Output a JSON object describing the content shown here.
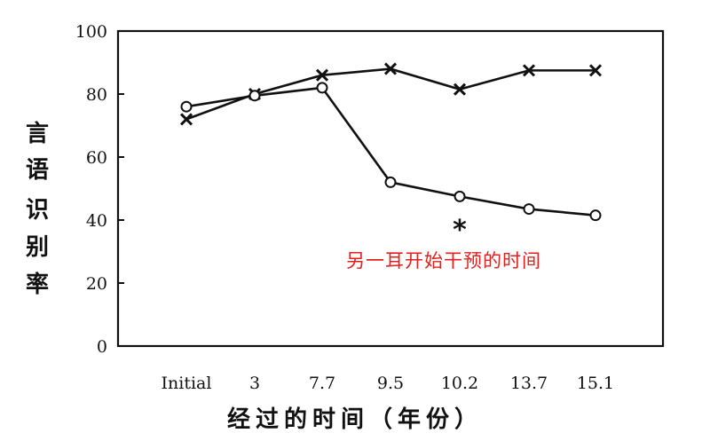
{
  "chart_data": {
    "type": "line",
    "categories": [
      "Initial",
      "3",
      "7.7",
      "9.5",
      "10.2",
      "13.7",
      "15.1"
    ],
    "series": [
      {
        "marker": "x",
        "values": [
          72,
          80,
          86,
          88,
          81.5,
          87.5,
          87.5
        ]
      },
      {
        "marker": "circle",
        "values": [
          76,
          79.5,
          82,
          52,
          47.5,
          43.5,
          41.5
        ]
      }
    ],
    "ylim": [
      0,
      100
    ],
    "yticks": [
      0,
      20,
      40,
      60,
      80,
      100
    ],
    "xlabel": "经过的时间（年份）",
    "ylabel": "言语识别率",
    "ylabel_chars": [
      "言",
      "语",
      "识",
      "别",
      "率"
    ],
    "annotations": [
      {
        "text": "*",
        "category": "10.2",
        "y": 39.5
      },
      {
        "text": "另一耳开始干预的时间",
        "color": "#e0221e"
      }
    ],
    "grid": false,
    "legend": "none"
  }
}
